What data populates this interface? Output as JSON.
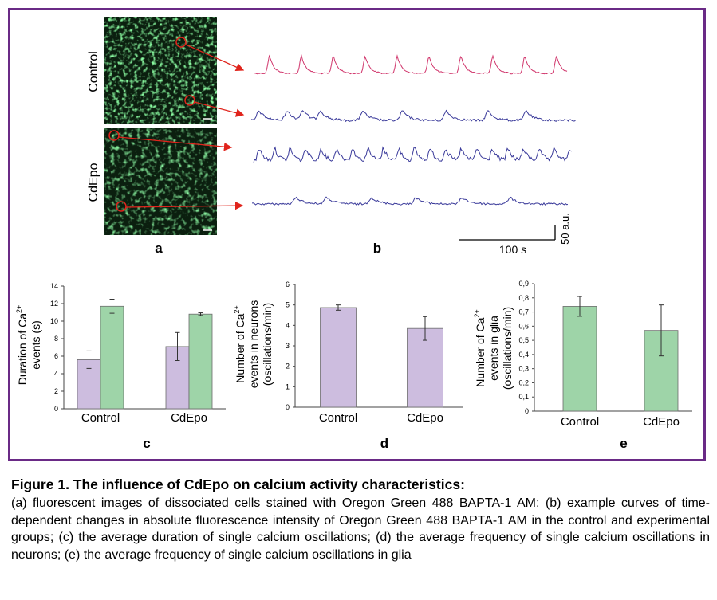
{
  "panel_a": {
    "label": "a",
    "row_labels": [
      "Control",
      "CdEpo"
    ]
  },
  "panel_b": {
    "label": "b",
    "scale_y_label": "50 a.u.",
    "scale_x_label": "100 s"
  },
  "panel_c": {
    "label": "c"
  },
  "panel_d": {
    "label": "d"
  },
  "panel_e": {
    "label": "e"
  },
  "colors": {
    "frame": "#6a2a86",
    "purple_bar": "#cdbddf",
    "green_bar": "#9ed4a8",
    "trace_pink": "#d0336a",
    "trace_blue": "#3a3a9a",
    "arrow_red": "#e0241c"
  },
  "chart_data": [
    {
      "type": "bar",
      "panel": "c",
      "categories": [
        "Control",
        "CdEpo"
      ],
      "ylabel": "Duration of Ca2+ events (s)",
      "ylabel_lines": [
        "Duration of Ca",
        "events (s)"
      ],
      "ylim": [
        0,
        14
      ],
      "yticks": [
        "0",
        "2",
        "4",
        "6",
        "8",
        "10",
        "12",
        "14"
      ],
      "series": [
        {
          "values": [
            5.6,
            7.1
          ],
          "errors": [
            1.0,
            1.6
          ],
          "color": "#cdbddf"
        },
        {
          "values": [
            11.7,
            10.8
          ],
          "errors": [
            0.8,
            0.15
          ],
          "color": "#9ed4a8"
        }
      ]
    },
    {
      "type": "bar",
      "panel": "d",
      "categories": [
        "Control",
        "CdEpo"
      ],
      "ylabel": "Number of Ca2+ events in neurons (oscillations/min)",
      "ylabel_lines": [
        "Number of Ca",
        "events in neurons",
        "(oscillations/min)"
      ],
      "ylim": [
        0,
        6
      ],
      "yticks": [
        "0",
        "1",
        "2",
        "3",
        "4",
        "5",
        "6"
      ],
      "series": [
        {
          "values": [
            4.87,
            3.85
          ],
          "errors": [
            0.13,
            0.58
          ],
          "color": "#cdbddf"
        }
      ]
    },
    {
      "type": "bar",
      "panel": "e",
      "categories": [
        "Control",
        "CdEpo"
      ],
      "ylabel": "Number of Ca2+ events in glia (oscillations/min)",
      "ylabel_lines": [
        "Number of Ca",
        "events in glia",
        "(oscillations/min)"
      ],
      "ylim": [
        0,
        0.9
      ],
      "yticks": [
        "0",
        "0,1",
        "0,2",
        "0,3",
        "0,4",
        "0,5",
        "0,6",
        "0,7",
        "0,8",
        "0,9"
      ],
      "series": [
        {
          "values": [
            0.74,
            0.57
          ],
          "errors": [
            0.07,
            0.18
          ],
          "color": "#9ed4a8"
        }
      ]
    }
  ],
  "caption": {
    "title": "Figure 1. The influence of CdEpo on calcium activity characteristics:",
    "body": "(a) fluorescent images of dissociated cells stained with Oregon Green 488 BAPTA-1 AM; (b) example curves of time-dependent changes in absolute fluorescence intensity of Oregon Green 488 BAPTA-1 AM in the control and experimental groups; (c) the average duration of single calcium oscillations; (d) the average frequency of single calcium oscillations in neurons; (e) the average frequency of single calcium oscillations in glia"
  }
}
